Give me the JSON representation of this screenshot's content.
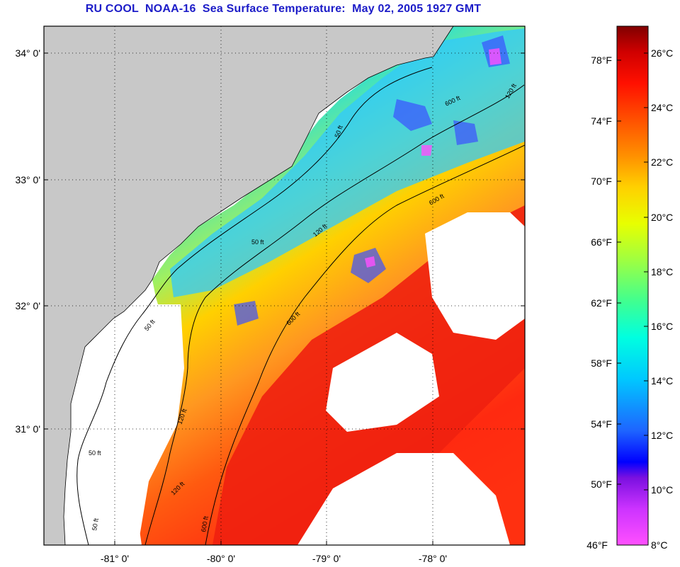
{
  "title": {
    "org": "RU COOL",
    "satellite": "NOAA-16",
    "product": "Sea Surface Temperature:",
    "datetime": "May 02, 2005 1927 GMT"
  },
  "map": {
    "lat_ticks": [
      "34° 0'",
      "33° 0'",
      "32° 0'",
      "31° 0'"
    ],
    "lon_ticks": [
      "-81° 0'",
      "-80° 0'",
      "-79° 0'",
      "-78° 0'"
    ],
    "contour_labels": [
      "50 ft",
      "120 ft",
      "600 ft",
      "50 ft",
      "120 ft",
      "600 ft",
      "50 ft",
      "120 ft",
      "600 ft",
      "50 ft",
      "50 ft",
      "120 ft",
      "600 ft"
    ],
    "colors": {
      "land": "#c8c8c8",
      "no_data": "#ffffff",
      "contour": "#000000",
      "grid": "#000000"
    }
  },
  "colorbar": {
    "fahrenheit_labels": [
      "78°F",
      "74°F",
      "70°F",
      "66°F",
      "62°F",
      "58°F",
      "54°F",
      "50°F",
      "46°F"
    ],
    "celsius_labels": [
      "26°C",
      "24°C",
      "22°C",
      "20°C",
      "18°C",
      "16°C",
      "14°C",
      "12°C",
      "10°C",
      "8°C"
    ],
    "range_c": [
      8,
      27
    ],
    "stops": [
      "#ff50ff",
      "#cc33ff",
      "#7a10e0",
      "#0000ff",
      "#1e64ff",
      "#00c8ff",
      "#00ffe0",
      "#40ff90",
      "#a0ff40",
      "#e8ff00",
      "#ffd000",
      "#ff9000",
      "#ff5000",
      "#ff1000",
      "#d00000",
      "#800000"
    ]
  }
}
